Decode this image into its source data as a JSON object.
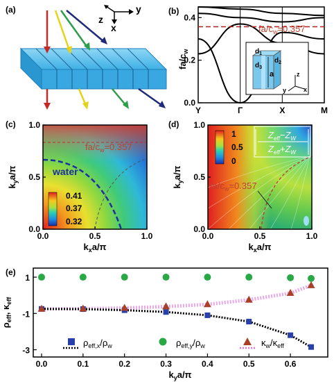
{
  "panel_a": {
    "label": "(a)",
    "axis_z": "z",
    "axis_y": "y",
    "axis_x": "x",
    "colors": {
      "red": "#c62828",
      "yellow": "#e6d21a",
      "green": "#2e9e4a",
      "navy": "#1f2a78",
      "plate": "#3fb0e6"
    }
  },
  "panel_b": {
    "label": "(b)",
    "ylabel": "fa/c",
    "ylabel_sub": "w",
    "annotation": "fa/c",
    "annotation_sub": "w",
    "annotation_val": "=0.357",
    "inset_labels": {
      "d1": "d",
      "d1_sub": "1",
      "d2": "d",
      "d2_sub": "2",
      "d3": "d",
      "d3_sub": "3",
      "a": "a",
      "z": "z",
      "y": "y",
      "x": "x"
    }
  },
  "panel_c": {
    "label": "(c)",
    "xlabel": "k",
    "xlabel_sub": "x",
    "xlabel_tail": "a/π",
    "ylabel": "k",
    "ylabel_sub": "y",
    "ylabel_tail": "a/π",
    "annotation": "fa/c",
    "annotation_sub": "w",
    "annotation_val": "=0.357",
    "water_label": "water",
    "colorbar_ticks": [
      "0.41",
      "0.37",
      "0.32"
    ]
  },
  "panel_d": {
    "label": "(d)",
    "xlabel": "k",
    "xlabel_sub": "x",
    "xlabel_tail": "a/π",
    "ylabel": "k",
    "ylabel_sub": "y",
    "ylabel_tail": "a/π",
    "annotation": "fa/c",
    "annotation_sub": "w",
    "annotation_val": "=0.357",
    "colorbar_ticks": [
      "1",
      "0.5",
      "0"
    ],
    "formula_num_a": "Z",
    "formula_num_a_sub": "eff",
    "formula_num_op": "−",
    "formula_num_b": "Z",
    "formula_num_b_sub": "W",
    "formula_den_a": "Z",
    "formula_den_a_sub": "eff",
    "formula_den_op": "+",
    "formula_den_b": "Z",
    "formula_den_b_sub": "W"
  },
  "panel_e": {
    "label": "(e)",
    "legend": [
      {
        "symbol": "ρ",
        "sub": "eff,x",
        "tail": "/ρ",
        "tail_sub": "w"
      },
      {
        "symbol": "ρ",
        "sub": "eff,y",
        "tail": "/ρ",
        "tail_sub": "w"
      },
      {
        "symbol": "κ",
        "sub": "w",
        "tail": "/κ",
        "tail_sub": "eff"
      }
    ]
  },
  "chart_data": [
    {
      "type": "line",
      "panel": "b",
      "x_categories": [
        "Y",
        "Γ",
        "X",
        "M"
      ],
      "ylim": [
        0.0,
        0.45
      ],
      "y_ticks": [
        "0.0",
        "0.2",
        "0.4"
      ],
      "reference_line": 0.357,
      "bands": [
        {
          "x": [
            0,
            1,
            2,
            3
          ],
          "y": [
            0.3,
            0.0,
            0.33,
            0.3
          ]
        },
        {
          "x": [
            0,
            1,
            2,
            3
          ],
          "y": [
            0.23,
            0.37,
            0.28,
            0.23
          ]
        },
        {
          "x": [
            0,
            1,
            2,
            3
          ],
          "y": [
            0.42,
            0.4,
            0.38,
            0.4
          ]
        },
        {
          "x": [
            0,
            1,
            2,
            3
          ],
          "y": [
            0.45,
            0.44,
            0.42,
            0.41
          ]
        }
      ]
    },
    {
      "type": "heatmap",
      "panel": "c",
      "xlim": [
        0.0,
        1.0
      ],
      "ylim": [
        0.0,
        1.0
      ],
      "x_ticks": [
        "0.0",
        "0.5",
        "1.0"
      ],
      "y_ticks": [
        "0.0",
        "0.5",
        "1.0"
      ],
      "colorbar_range": [
        0.32,
        0.41
      ]
    },
    {
      "type": "heatmap",
      "panel": "d",
      "xlim": [
        0.0,
        1.0
      ],
      "ylim": [
        0.0,
        1.0
      ],
      "x_ticks": [
        "0.0",
        "0.5",
        "1.0"
      ],
      "y_ticks": [
        "0.0",
        "0.5",
        "1.0"
      ],
      "colorbar_range": [
        0,
        1
      ]
    },
    {
      "type": "scatter",
      "panel": "e",
      "xlabel": "k",
      "xlabel_sub": "y",
      "xlabel_tail": "a/π",
      "ylabel": "ρ",
      "ylabel_sub": "eff",
      "ylabel_tail": ", κ",
      "ylabel_tail_sub": "eff",
      "xlim": [
        0.0,
        0.67
      ],
      "ylim": [
        -3.4,
        1.5
      ],
      "x_ticks": [
        "0.0",
        "0.1",
        "0.2",
        "0.3",
        "0.4",
        "0.5",
        "0.6"
      ],
      "y_ticks": [
        "-3",
        "-1",
        "1"
      ],
      "x": [
        0.0,
        0.1,
        0.2,
        0.3,
        0.4,
        0.5,
        0.6,
        0.65
      ],
      "series": [
        {
          "name": "ρeff,x/ρw",
          "marker": "square",
          "color": "#2840a8",
          "values": [
            -0.75,
            -0.76,
            -0.82,
            -0.92,
            -1.1,
            -1.45,
            -2.2,
            -2.85
          ]
        },
        {
          "name": "ρeff,y/ρw",
          "marker": "circle",
          "color": "#29a846",
          "values": [
            1.0,
            1.0,
            1.0,
            1.0,
            1.0,
            1.0,
            0.97,
            0.93
          ]
        },
        {
          "name": "κw/κeff",
          "marker": "triangle",
          "color": "#a8402a",
          "values": [
            -0.75,
            -0.74,
            -0.7,
            -0.62,
            -0.5,
            -0.25,
            0.12,
            0.55
          ]
        }
      ]
    }
  ]
}
